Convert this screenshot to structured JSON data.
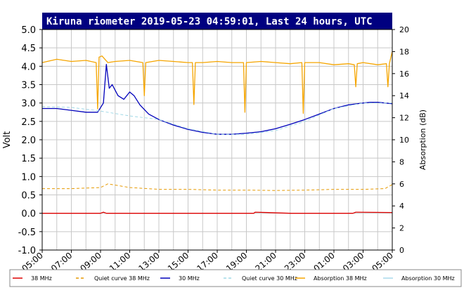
{
  "chart_data": {
    "type": "line",
    "title": "Kiruna riometer 2019-05-23 04:59:01, Last 24 hours, UTC",
    "ylabel": "Volt",
    "ylabel_right": "Absorption (dB)",
    "xlim": [
      5,
      29
    ],
    "ylim": [
      -1,
      5
    ],
    "ylim_right": [
      0,
      20
    ],
    "grid": true,
    "legend_position": "bottom",
    "x_ticks": [
      {
        "value": 5,
        "label": "05:00"
      },
      {
        "value": 7,
        "label": "07:00"
      },
      {
        "value": 9,
        "label": "09:00"
      },
      {
        "value": 11,
        "label": "11:00"
      },
      {
        "value": 13,
        "label": "13:00"
      },
      {
        "value": 15,
        "label": "15:00"
      },
      {
        "value": 17,
        "label": "17:00"
      },
      {
        "value": 19,
        "label": "19:00"
      },
      {
        "value": 21,
        "label": "21:00"
      },
      {
        "value": 23,
        "label": "23:00"
      },
      {
        "value": 25,
        "label": "01:00"
      },
      {
        "value": 27,
        "label": "03:00"
      },
      {
        "value": 29,
        "label": "05:00"
      }
    ],
    "y_ticks": [
      {
        "value": 5,
        "label": "5.0"
      },
      {
        "value": 4.5,
        "label": "4.5"
      },
      {
        "value": 4,
        "label": "4.0"
      },
      {
        "value": 3.5,
        "label": "3.5"
      },
      {
        "value": 3,
        "label": "3.0"
      },
      {
        "value": 2.5,
        "label": "2.5"
      },
      {
        "value": 2,
        "label": "2.0"
      },
      {
        "value": 1.5,
        "label": "1.5"
      },
      {
        "value": 1,
        "label": "1.0"
      },
      {
        "value": 0.5,
        "label": "0.5"
      },
      {
        "value": 0,
        "label": "0.0"
      },
      {
        "value": -0.5,
        "label": "-0.5"
      },
      {
        "value": -1,
        "label": "-1.0"
      }
    ],
    "y_ticks_right": [
      {
        "value": 0,
        "label": "0"
      },
      {
        "value": 2,
        "label": "2"
      },
      {
        "value": 4,
        "label": "4"
      },
      {
        "value": 6,
        "label": "6"
      },
      {
        "value": 8,
        "label": "8"
      },
      {
        "value": 10,
        "label": "10"
      },
      {
        "value": 12,
        "label": "12"
      },
      {
        "value": 14,
        "label": "14"
      },
      {
        "value": 16,
        "label": "16"
      },
      {
        "value": 18,
        "label": "18"
      },
      {
        "value": 20,
        "label": "20"
      }
    ],
    "series": [
      {
        "name": "38 MHz",
        "axis": "left",
        "color": "#dd0000",
        "style": "solid",
        "x": [
          5,
          9,
          9.2,
          9.4,
          12,
          14,
          17,
          19.5,
          19.6,
          22,
          24,
          26.3,
          26.5,
          29
        ],
        "y": [
          0,
          0,
          0.03,
          0,
          0,
          0,
          0,
          0,
          0.03,
          0,
          0,
          0,
          0.03,
          0.02
        ]
      },
      {
        "name": "Quiet curve 38 MHz",
        "axis": "left",
        "color": "#e69900",
        "style": "dashed",
        "x": [
          5,
          7,
          9,
          9.5,
          11,
          13,
          15,
          17,
          19,
          21,
          23,
          25,
          27,
          28.5,
          29
        ],
        "y": [
          0.67,
          0.67,
          0.7,
          0.8,
          0.7,
          0.65,
          0.65,
          0.63,
          0.63,
          0.62,
          0.63,
          0.65,
          0.65,
          0.67,
          0.78
        ]
      },
      {
        "name": "30 MHz",
        "axis": "left",
        "color": "#0000bb",
        "style": "solid",
        "x": [
          5,
          6,
          7,
          8,
          8.8,
          9.2,
          9.4,
          9.6,
          9.8,
          10.2,
          10.6,
          11,
          11.3,
          11.7,
          12.3,
          13,
          14,
          15,
          16,
          17,
          18,
          19,
          20,
          21,
          22,
          23,
          24,
          25,
          26,
          27,
          27.5,
          28,
          29
        ],
        "y": [
          2.85,
          2.85,
          2.8,
          2.75,
          2.75,
          3.0,
          4.05,
          3.4,
          3.5,
          3.2,
          3.1,
          3.3,
          3.2,
          2.95,
          2.7,
          2.55,
          2.4,
          2.28,
          2.2,
          2.15,
          2.15,
          2.18,
          2.22,
          2.3,
          2.42,
          2.55,
          2.7,
          2.85,
          2.95,
          3.0,
          3.02,
          3.02,
          2.98
        ]
      },
      {
        "name": "Quiet curve 30 MHz",
        "axis": "left",
        "color": "#9fd8e6",
        "style": "dashed",
        "x": [
          5,
          7,
          9,
          11,
          13,
          15,
          17,
          19,
          21,
          23,
          25,
          27,
          29
        ],
        "y": [
          2.9,
          2.88,
          2.78,
          2.65,
          2.55,
          2.3,
          2.15,
          2.15,
          2.25,
          2.5,
          2.85,
          3.0,
          3.0
        ]
      },
      {
        "name": "Absorption 38 MHz",
        "axis": "right",
        "color": "#f5a500",
        "style": "solid",
        "x": [
          5,
          6,
          7,
          8,
          8.7,
          8.8,
          8.9,
          9.1,
          9.5,
          10,
          11,
          11.9,
          12,
          12.1,
          13,
          14,
          15,
          15.3,
          15.4,
          15.5,
          16,
          17,
          18,
          18.8,
          18.9,
          19,
          20,
          21,
          22,
          22.8,
          22.9,
          23,
          24,
          25,
          26,
          26.4,
          26.5,
          26.6,
          27,
          28,
          28.6,
          28.7,
          28.8,
          29
        ],
        "y": [
          17.0,
          17.3,
          17.1,
          17.2,
          17.0,
          12.8,
          17.5,
          17.6,
          17.0,
          17.1,
          17.2,
          17.0,
          14.0,
          17.0,
          17.2,
          17.1,
          17.0,
          17.0,
          13.2,
          17.0,
          17.0,
          17.1,
          17.0,
          17.0,
          12.5,
          17.0,
          17.1,
          17.0,
          16.9,
          17.0,
          12.4,
          17.0,
          17.0,
          16.8,
          16.9,
          16.8,
          14.8,
          16.9,
          17.0,
          16.8,
          16.9,
          14.8,
          16.9,
          18.0
        ]
      },
      {
        "name": "Absorption 30 MHz",
        "axis": "right",
        "color": "#a8d8ea",
        "style": "solid",
        "x": [],
        "y": []
      }
    ]
  }
}
